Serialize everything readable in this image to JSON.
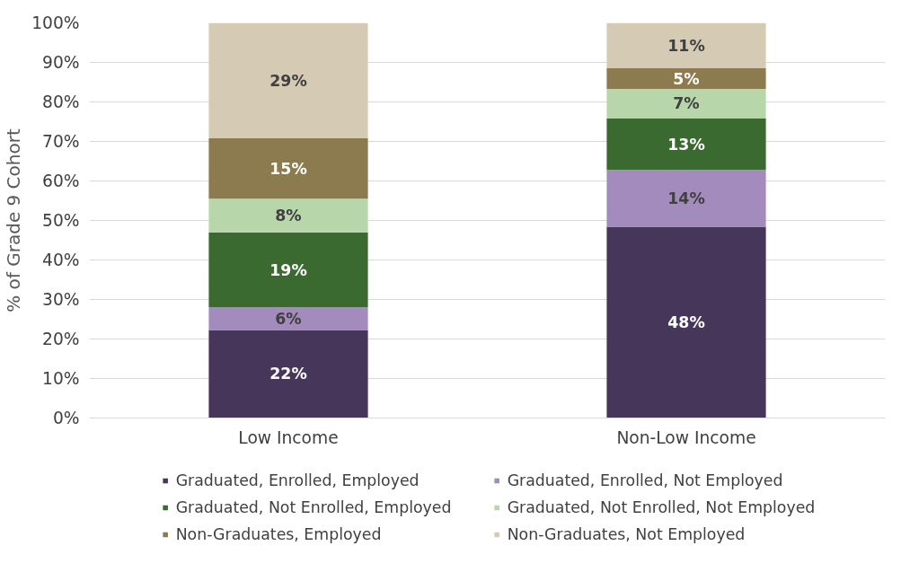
{
  "chart_data": {
    "type": "bar",
    "stacked": true,
    "ylabel": "% of Grade 9 Cohort",
    "categories": [
      "Low Income",
      "Non-Low Income"
    ],
    "series": [
      {
        "name": "Graduated, Enrolled, Employed",
        "color": "#463659",
        "values": [
          22.3,
          48.4
        ],
        "value_labels": [
          "22%",
          "48%"
        ]
      },
      {
        "name": "Graduated, Enrolled, Not Employed",
        "color": "#a38bbd",
        "values": [
          5.7,
          14.4
        ],
        "value_labels": [
          "6%",
          "14%"
        ]
      },
      {
        "name": "Graduated, Not Enrolled, Employed",
        "color": "#3b6a30",
        "values": [
          19.0,
          13.0
        ],
        "value_labels": [
          "19%",
          "13%"
        ]
      },
      {
        "name": "Graduated, Not Enrolled, Not Employed",
        "color": "#b7d7ab",
        "values": [
          8.5,
          7.5
        ],
        "value_labels": [
          "8%",
          "7%"
        ]
      },
      {
        "name": "Non-Graduates, Employed",
        "color": "#8b7b4f",
        "values": [
          15.3,
          5.2
        ],
        "value_labels": [
          "15%",
          "5%"
        ]
      },
      {
        "name": "Non-Graduates, Not Employed",
        "color": "#d5cbb5",
        "values": [
          29.2,
          11.5
        ],
        "value_labels": [
          "29%",
          "11%"
        ]
      }
    ],
    "ylim": [
      0,
      100
    ],
    "yticks": [
      {
        "value": 0,
        "label": "0%"
      },
      {
        "value": 10,
        "label": "10%"
      },
      {
        "value": 20,
        "label": "20%"
      },
      {
        "value": 30,
        "label": "30%"
      },
      {
        "value": 40,
        "label": "40%"
      },
      {
        "value": 50,
        "label": "50%"
      },
      {
        "value": 60,
        "label": "60%"
      },
      {
        "value": 70,
        "label": "70%"
      },
      {
        "value": 80,
        "label": "80%"
      },
      {
        "value": 90,
        "label": "90%"
      },
      {
        "value": 100,
        "label": "100%"
      }
    ],
    "grid": "y",
    "legend": "bottom"
  }
}
